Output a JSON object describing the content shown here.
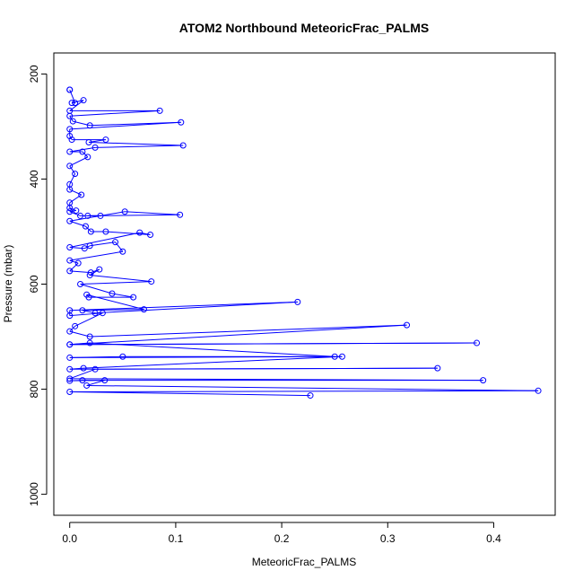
{
  "chart_data": {
    "type": "scatter",
    "title": "ATOM2 Northbound MeteoricFrac_PALMS",
    "xlabel": "MeteoricFrac_PALMS",
    "ylabel": "Pressure (mbar)",
    "xlim": [
      -0.015,
      0.458
    ],
    "ylim": [
      1040,
      160
    ],
    "y_inverted": true,
    "x_ticks": [
      "0.0",
      "0.1",
      "0.2",
      "0.3",
      "0.4"
    ],
    "x_tick_values": [
      0.0,
      0.1,
      0.2,
      0.3,
      0.4
    ],
    "y_ticks": [
      "200",
      "400",
      "600",
      "800",
      "1000"
    ],
    "y_tick_values": [
      200,
      400,
      600,
      800,
      1000
    ],
    "grid": false,
    "legend": "none",
    "marker": "open-circle",
    "connect_points": true,
    "series_color": "#0000ff",
    "series": [
      {
        "x": [
          0.0,
          0.0,
          0.005,
          0.002,
          0.013,
          0.0,
          0.085,
          0.0,
          0.003,
          0.019,
          0.105,
          0.0,
          0.0,
          0.002,
          0.034,
          0.018,
          0.107,
          0.024,
          0.0,
          0.012,
          0.017,
          0.0,
          0.005,
          0.0,
          0.0,
          0.011,
          0.0,
          0.0,
          0.006,
          0.0,
          0.01,
          0.029,
          0.017,
          0.104,
          0.052,
          0.0,
          0.015,
          0.02,
          0.034,
          0.076,
          0.066,
          0.0,
          0.014,
          0.019,
          0.043,
          0.05,
          0.0,
          0.008,
          0.0,
          0.02,
          0.028,
          0.019,
          0.077,
          0.01,
          0.04,
          0.06,
          0.018,
          0.016,
          0.07,
          0.012,
          0.024,
          0.215,
          0.0,
          0.0,
          0.031,
          0.005,
          0.0,
          0.019,
          0.318,
          0.0,
          0.384,
          0.0,
          0.019,
          0.25,
          0.05,
          0.0,
          0.257,
          0.013,
          0.0,
          0.347,
          0.024,
          0.0,
          0.39,
          0.012,
          0.0,
          0.033,
          0.016,
          0.442,
          0.0,
          0.227
        ],
        "y": [
          230,
          230,
          255,
          255,
          250,
          270,
          270,
          280,
          290,
          298,
          292,
          305,
          318,
          325,
          325,
          330,
          336,
          340,
          348,
          348,
          358,
          375,
          390,
          410,
          420,
          430,
          445,
          455,
          460,
          462,
          470,
          470,
          470,
          468,
          462,
          480,
          490,
          500,
          500,
          506,
          502,
          530,
          532,
          527,
          520,
          538,
          555,
          560,
          575,
          578,
          572,
          583,
          595,
          600,
          618,
          625,
          625,
          620,
          648,
          650,
          655,
          634,
          650,
          660,
          655,
          680,
          690,
          700,
          678,
          715,
          712,
          715,
          712,
          738,
          738,
          740,
          738,
          760,
          762,
          760,
          762,
          780,
          783,
          783,
          784,
          783,
          793,
          803,
          805,
          812
        ]
      }
    ]
  }
}
